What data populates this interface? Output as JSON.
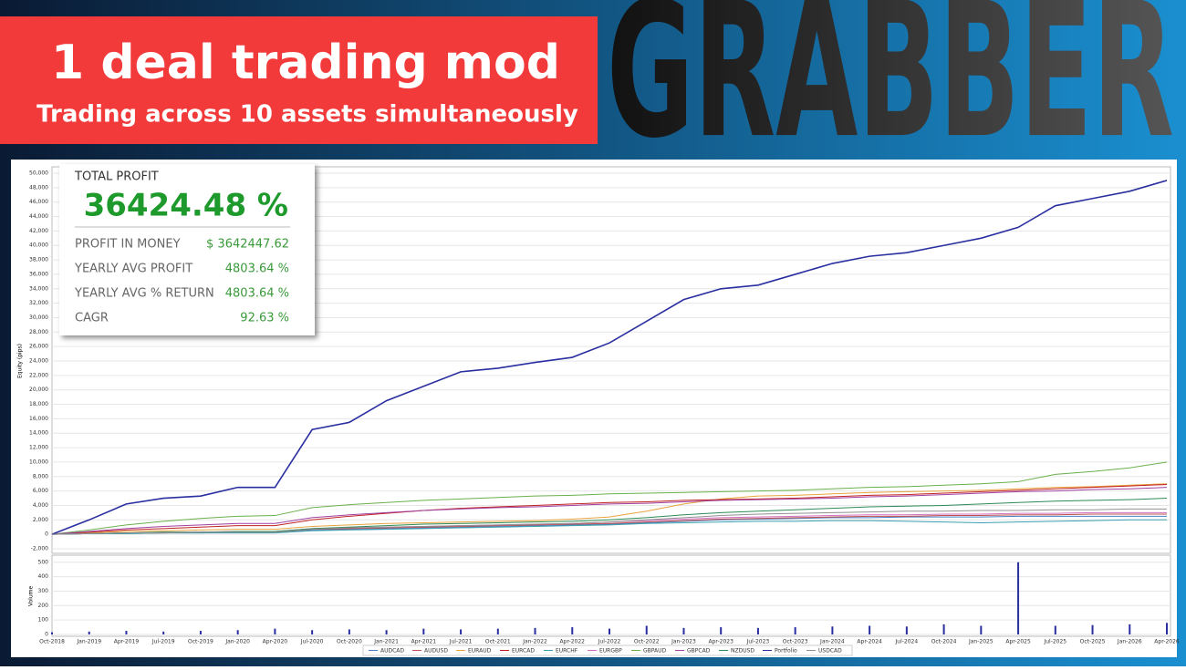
{
  "header": {
    "title": "1 deal trading mod",
    "subtitle": "Trading across 10 assets simultaneously",
    "brand": "GRABBER"
  },
  "stats": {
    "label": "TOTAL PROFIT",
    "value": "36424.48 %",
    "rows": [
      [
        "PROFIT IN MONEY",
        "$ 3642447.62"
      ],
      [
        "YEARLY AVG PROFIT",
        "4803.64 %"
      ],
      [
        "YEARLY AVG % RETURN",
        "4803.64 %"
      ],
      [
        "CAGR",
        "92.63 %"
      ]
    ]
  },
  "chart_data": {
    "type": "line",
    "ylabel": "Equity (pips)",
    "categories": [
      "Oct-2018",
      "Jan-2019",
      "Apr-2019",
      "Jul-2019",
      "Oct-2019",
      "Jan-2020",
      "Apr-2020",
      "Jul-2020",
      "Oct-2020",
      "Jan-2021",
      "Apr-2021",
      "Jul-2021",
      "Oct-2021",
      "Jan-2022",
      "Apr-2022",
      "Jul-2022",
      "Oct-2022",
      "Jan-2023",
      "Apr-2023",
      "Jul-2023",
      "Oct-2023",
      "Jan-2024",
      "Apr-2024",
      "Jul-2024",
      "Oct-2024",
      "Jan-2025",
      "Apr-2025",
      "Jul-2025",
      "Oct-2025",
      "Jan-2026",
      "Apr-2026"
    ],
    "ylim": [
      -2000,
      50000
    ],
    "yticks": [
      {
        "value": -2000,
        "label": "-2,000"
      },
      0,
      {
        "value": 2000,
        "label": "2,000"
      },
      {
        "value": 4000,
        "label": "4,000"
      },
      {
        "value": 6000,
        "label": "6,000"
      },
      {
        "value": 8000,
        "label": "8,000"
      },
      {
        "value": 10000,
        "label": "10,000"
      },
      {
        "value": 12000,
        "label": "12,000"
      },
      {
        "value": 14000,
        "label": "14,000"
      },
      {
        "value": 16000,
        "label": "16,000"
      },
      {
        "value": 18000,
        "label": "18,000"
      },
      {
        "value": 20000,
        "label": "20,000"
      },
      {
        "value": 22000,
        "label": "22,000"
      },
      {
        "value": 24000,
        "label": "24,000"
      },
      {
        "value": 26000,
        "label": "26,000"
      },
      {
        "value": 28000,
        "label": "28,000"
      },
      {
        "value": 30000,
        "label": "30,000"
      },
      {
        "value": 32000,
        "label": "32,000"
      },
      {
        "value": 34000,
        "label": "34,000"
      },
      {
        "value": 36000,
        "label": "36,000"
      },
      {
        "value": 38000,
        "label": "38,000"
      },
      {
        "value": 40000,
        "label": "40,000"
      },
      {
        "value": 42000,
        "label": "42,000"
      },
      {
        "value": 44000,
        "label": "44,000"
      },
      {
        "value": 46000,
        "label": "46,000"
      },
      {
        "value": 48000,
        "label": "48,000"
      },
      {
        "value": 50000,
        "label": "50,000"
      }
    ],
    "grid": true,
    "series": [
      {
        "name": "AUDCAD",
        "color": "#4a7fc4",
        "values": [
          0,
          100,
          100,
          200,
          200,
          300,
          300,
          600,
          700,
          800,
          900,
          1000,
          1100,
          1200,
          1300,
          1400,
          1600,
          1800,
          2000,
          2100,
          2200,
          2300,
          2300,
          2400,
          2400,
          2400,
          2500,
          2500,
          2500,
          2500,
          2500
        ]
      },
      {
        "name": "AUDUSD",
        "color": "#c0504d",
        "values": [
          0,
          100,
          200,
          200,
          300,
          300,
          300,
          700,
          800,
          900,
          1000,
          1100,
          1200,
          1300,
          1400,
          1500,
          1700,
          1900,
          2100,
          2200,
          2300,
          2400,
          2500,
          2500,
          2600,
          2600,
          2700,
          2700,
          2800,
          2800,
          2800
        ]
      },
      {
        "name": "EURAUD",
        "color": "#e8a33c",
        "values": [
          0,
          200,
          400,
          500,
          600,
          700,
          700,
          1100,
          1300,
          1500,
          1600,
          1700,
          1800,
          1900,
          2100,
          2400,
          3200,
          4200,
          4900,
          5300,
          5400,
          5600,
          5800,
          5900,
          6000,
          6100,
          6300,
          6500,
          6600,
          6800,
          7000
        ]
      },
      {
        "name": "EURCAD",
        "color": "#c02020",
        "values": [
          0,
          300,
          600,
          800,
          1000,
          1200,
          1200,
          2000,
          2500,
          2900,
          3300,
          3600,
          3800,
          4000,
          4200,
          4400,
          4500,
          4700,
          4800,
          4900,
          5000,
          5200,
          5400,
          5500,
          5700,
          5900,
          6100,
          6300,
          6500,
          6700,
          6900
        ]
      },
      {
        "name": "EURCHF",
        "color": "#3aa0b0",
        "values": [
          0,
          100,
          100,
          200,
          200,
          200,
          200,
          500,
          600,
          700,
          800,
          900,
          1000,
          1100,
          1200,
          1300,
          1500,
          1600,
          1700,
          1800,
          1800,
          1900,
          1900,
          1800,
          1700,
          1600,
          1700,
          1800,
          1900,
          2000,
          2000
        ]
      },
      {
        "name": "EURGBP",
        "color": "#d070c0",
        "values": [
          0,
          100,
          200,
          300,
          300,
          400,
          400,
          800,
          900,
          1000,
          1100,
          1200,
          1300,
          1400,
          1500,
          1700,
          1900,
          2100,
          2300,
          2400,
          2500,
          2600,
          2700,
          2700,
          2800,
          2800,
          2900,
          2900,
          3000,
          3000,
          3000
        ]
      },
      {
        "name": "GBPAUD",
        "color": "#6ab04c",
        "values": [
          0,
          600,
          1300,
          1800,
          2200,
          2500,
          2600,
          3700,
          4100,
          4400,
          4700,
          4900,
          5100,
          5300,
          5400,
          5600,
          5700,
          5800,
          5900,
          6000,
          6100,
          6300,
          6500,
          6600,
          6800,
          7000,
          7300,
          8300,
          8700,
          9200,
          10000
        ]
      },
      {
        "name": "GBPCAD",
        "color": "#a040a0",
        "values": [
          0,
          400,
          800,
          1100,
          1300,
          1500,
          1500,
          2300,
          2700,
          3000,
          3300,
          3500,
          3700,
          3800,
          4000,
          4200,
          4300,
          4500,
          4700,
          4800,
          4900,
          5000,
          5200,
          5300,
          5500,
          5700,
          5900,
          6000,
          6200,
          6300,
          6500
        ]
      },
      {
        "name": "NZDUSD",
        "color": "#2e8b57",
        "values": [
          0,
          100,
          200,
          300,
          300,
          400,
          400,
          800,
          1000,
          1200,
          1400,
          1500,
          1600,
          1700,
          1800,
          2000,
          2300,
          2700,
          3000,
          3200,
          3400,
          3600,
          3800,
          3900,
          4000,
          4200,
          4400,
          4600,
          4700,
          4800,
          5000
        ]
      },
      {
        "name": "Portfolio",
        "color": "#2a2fa0",
        "values": [
          0,
          2000,
          4200,
          5000,
          5300,
          6500,
          6500,
          14500,
          15500,
          18500,
          20500,
          22500,
          23000,
          23800,
          24500,
          26500,
          29500,
          32500,
          34000,
          34500,
          36000,
          37500,
          38500,
          39000,
          40000,
          41000,
          42500,
          45500,
          46500,
          47500,
          49000
        ]
      },
      {
        "name": "USDCAD",
        "color": "#909090",
        "values": [
          0,
          100,
          200,
          200,
          300,
          300,
          300,
          700,
          900,
          1000,
          1100,
          1200,
          1300,
          1400,
          1500,
          1700,
          2000,
          2300,
          2600,
          2800,
          2900,
          3000,
          3100,
          3200,
          3200,
          3300,
          3300,
          3400,
          3400,
          3500,
          3500
        ]
      }
    ],
    "volume": {
      "type": "bar",
      "ylabel": "Volume",
      "color": "#2a2fa0",
      "ylim": [
        0,
        530
      ],
      "yticks": [
        0,
        100,
        200,
        300,
        400,
        500
      ],
      "values": [
        15,
        20,
        25,
        20,
        25,
        30,
        40,
        30,
        35,
        30,
        40,
        35,
        40,
        45,
        50,
        40,
        60,
        45,
        50,
        45,
        50,
        55,
        60,
        55,
        70,
        60,
        500,
        60,
        65,
        70,
        80
      ]
    }
  }
}
